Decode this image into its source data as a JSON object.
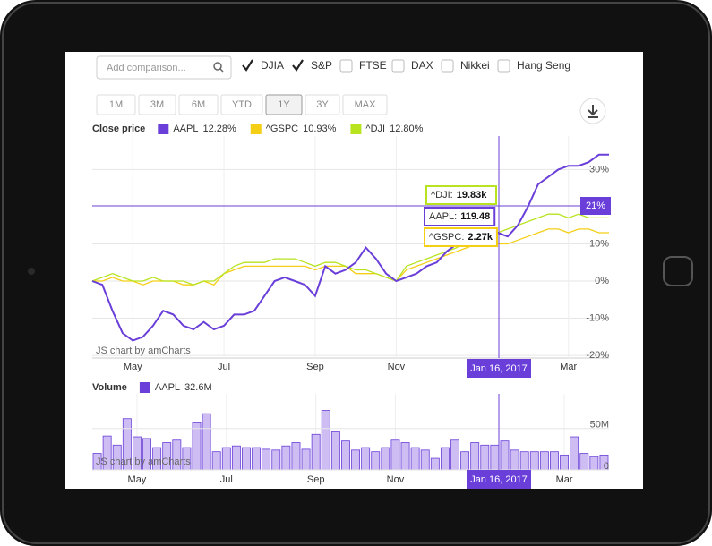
{
  "ui": {
    "search_placeholder": "Add comparison...",
    "comparisons": [
      {
        "label": "DJIA",
        "checked": true
      },
      {
        "label": "S&P",
        "checked": true
      },
      {
        "label": "FTSE",
        "checked": false
      },
      {
        "label": "DAX",
        "checked": false
      },
      {
        "label": "Nikkei",
        "checked": false
      },
      {
        "label": "Hang Seng",
        "checked": false
      }
    ],
    "ranges": [
      {
        "label": "1M"
      },
      {
        "label": "3M"
      },
      {
        "label": "6M"
      },
      {
        "label": "YTD"
      },
      {
        "label": "1Y",
        "selected": true
      },
      {
        "label": "3Y"
      },
      {
        "label": "MAX"
      }
    ]
  },
  "chart_data": [
    {
      "type": "line",
      "legend_title": "Close price",
      "categories": [
        null,
        null,
        null,
        null,
        "May",
        null,
        null,
        null,
        null,
        null,
        null,
        null,
        null,
        "Jul",
        null,
        null,
        null,
        null,
        null,
        null,
        null,
        null,
        "Sep",
        null,
        null,
        null,
        null,
        null,
        null,
        null,
        "Nov",
        null,
        null,
        null,
        null,
        null,
        null,
        null,
        null,
        null,
        null,
        null,
        null,
        null,
        null,
        null,
        null,
        "Mar",
        null,
        null,
        null,
        null
      ],
      "series": [
        {
          "name": "AAPL",
          "legend_value": "12.28%",
          "color": "#6a3fd9",
          "values": [
            0,
            -1,
            -8,
            -14,
            -16,
            -15,
            -12,
            -8,
            -9,
            -12,
            -13,
            -11,
            -13,
            -12,
            -9,
            -9,
            -8,
            -4,
            0,
            1,
            0,
            -1,
            -4,
            4,
            2,
            3,
            5,
            9,
            6,
            2,
            0,
            1,
            2,
            4,
            5,
            8,
            10,
            12,
            12,
            12,
            13,
            12,
            15,
            20,
            26,
            28,
            30,
            31,
            31,
            32,
            34,
            34
          ]
        },
        {
          "name": "^GSPC",
          "legend_value": "10.93%",
          "color": "#f4cf16",
          "values": [
            0,
            0,
            1,
            0,
            0,
            -1,
            0,
            0,
            0,
            -1,
            -1,
            0,
            -1,
            2,
            3,
            4,
            4,
            4,
            4,
            4,
            4,
            4,
            3,
            4,
            4,
            4,
            2,
            2,
            2,
            1,
            0,
            3,
            4,
            5,
            6,
            7,
            8,
            9,
            10,
            10,
            10,
            10,
            11,
            12,
            13,
            14,
            14,
            13,
            14,
            14,
            13,
            13
          ]
        },
        {
          "name": "^DJI",
          "legend_value": "12.80%",
          "color": "#b7e31f",
          "values": [
            0,
            1,
            2,
            1,
            0,
            0,
            1,
            0,
            0,
            0,
            -1,
            0,
            0,
            2,
            4,
            5,
            5,
            5,
            6,
            6,
            6,
            5,
            4,
            5,
            5,
            4,
            3,
            3,
            2,
            1,
            0,
            4,
            5,
            6,
            7,
            8,
            9,
            11,
            12,
            12,
            13,
            14,
            15,
            16,
            17,
            18,
            18,
            17,
            18,
            17,
            17,
            17
          ]
        }
      ],
      "ylim": [
        -20.7,
        39
      ],
      "yticks": [
        {
          "value": -20,
          "label": "-20%"
        },
        {
          "value": -10,
          "label": "-10%"
        },
        {
          "value": 0,
          "label": "0%"
        },
        {
          "value": 10,
          "label": "10%"
        },
        {
          "value": 30,
          "label": "30%"
        }
      ],
      "grid": true,
      "cursor": {
        "x_label": "Jan 16, 2017",
        "y_label": "21%"
      },
      "tooltips": [
        {
          "label": "^DJI:",
          "value": "19.83k",
          "color": "#b7e31f"
        },
        {
          "label": "AAPL:",
          "value": "119.48",
          "color": "#6a3fd9"
        },
        {
          "label": "^GSPC:",
          "value": "2.27k",
          "color": "#f4cf16"
        }
      ],
      "credit": "JS chart by amCharts"
    },
    {
      "type": "bar",
      "legend_title": "Volume",
      "categories": [
        null,
        null,
        null,
        null,
        "May",
        null,
        null,
        null,
        null,
        null,
        null,
        null,
        null,
        "Jul",
        null,
        null,
        null,
        null,
        null,
        null,
        null,
        null,
        "Sep",
        null,
        null,
        null,
        null,
        null,
        null,
        null,
        "Nov",
        null,
        null,
        null,
        null,
        null,
        null,
        null,
        null,
        null,
        null,
        null,
        null,
        null,
        null,
        null,
        null,
        "Mar",
        null,
        null,
        null,
        null
      ],
      "series": [
        {
          "name": "AAPL",
          "legend_value": "32.6M",
          "color": "#6a3fd9",
          "fill": "#cdbdf3",
          "values": [
            20,
            41,
            30,
            62,
            40,
            38,
            27,
            33,
            36,
            27,
            57,
            68,
            22,
            27,
            29,
            27,
            27,
            25,
            24,
            29,
            33,
            25,
            43,
            72,
            46,
            35,
            24,
            27,
            22,
            27,
            36,
            33,
            27,
            24,
            14,
            27,
            36,
            22,
            33,
            30,
            30,
            35,
            24,
            22,
            22,
            22,
            22,
            18,
            40,
            20,
            16,
            18
          ]
        }
      ],
      "ylim": [
        0,
        92
      ],
      "yticks": [
        0,
        {
          "value": 50,
          "label": "50M"
        }
      ],
      "grid": true,
      "cursor": {
        "x_label": "Jan 16, 2017"
      },
      "credit": "JS chart by amCharts"
    }
  ]
}
